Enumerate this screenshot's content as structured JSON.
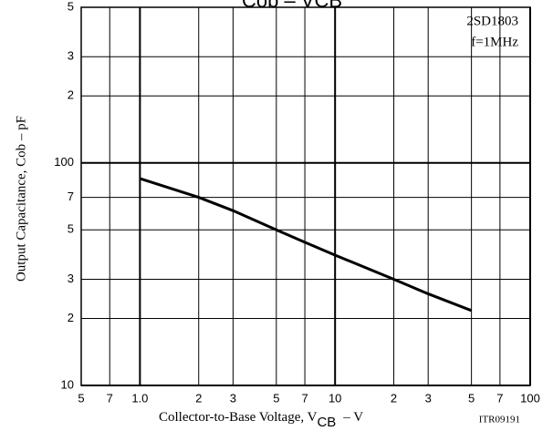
{
  "chart_data": {
    "type": "line",
    "title": "Cob – VCB",
    "annotations": [
      "2SD1803",
      "f=1MHz",
      "ITR09191"
    ],
    "xlabel": "Collector-to-Base Voltage, V",
    "xlabel_sub": "CB",
    "xlabel_unit": "–  V",
    "ylabel": "Output Capacitance, Cob  –  pF",
    "log_x": true,
    "log_y": true,
    "grid": true,
    "xlim": [
      0.5,
      100
    ],
    "ylim": [
      10,
      500
    ],
    "xticks": [
      {
        "value": 0.5,
        "label": "5"
      },
      {
        "value": 0.7,
        "label": "7"
      },
      {
        "value": 1,
        "label": "1.0"
      },
      2,
      3,
      5,
      7,
      10,
      {
        "value": 20,
        "label": "2"
      },
      {
        "value": 30,
        "label": "3"
      },
      {
        "value": 50,
        "label": "5"
      },
      {
        "value": 70,
        "label": "7"
      },
      100
    ],
    "yticks": [
      {
        "value": 500,
        "label": "5"
      },
      {
        "value": 300,
        "label": "3"
      },
      {
        "value": 200,
        "label": "2"
      },
      100,
      {
        "value": 70,
        "label": "7"
      },
      {
        "value": 50,
        "label": "5"
      },
      {
        "value": 30,
        "label": "3"
      },
      {
        "value": 20,
        "label": "2"
      },
      10
    ],
    "x": [
      1,
      2,
      3,
      5,
      7,
      10,
      20,
      30,
      50
    ],
    "series": [
      {
        "name": "2SD1803",
        "color": "#000000",
        "values": [
          85,
          70,
          61,
          50,
          44,
          38.5,
          30,
          25.8,
          21.7
        ]
      }
    ]
  }
}
